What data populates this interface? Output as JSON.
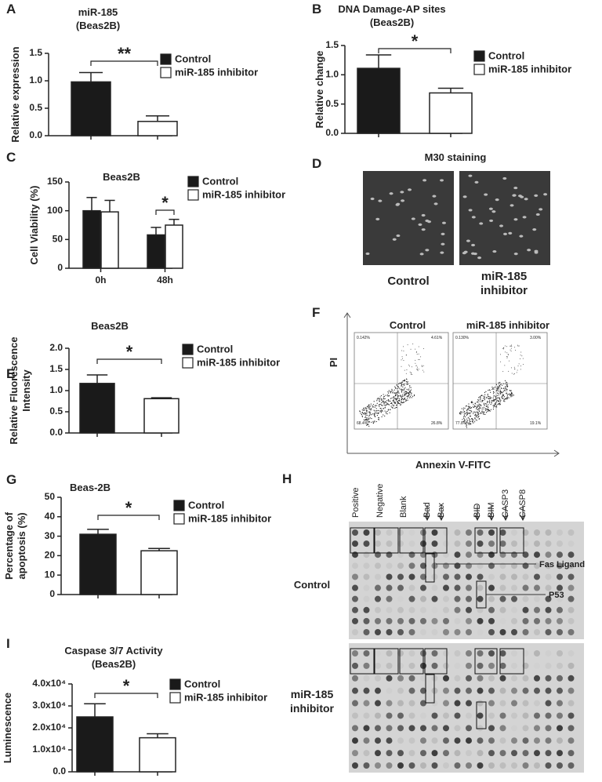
{
  "chart_data": [
    {
      "type": "bar",
      "label": "A",
      "title": "miR-185",
      "subtitle": "(Beas2B)",
      "ylabel": [
        "Relative expression"
      ],
      "categories": [
        null
      ],
      "ylim": [
        0,
        1.5
      ],
      "yticks": [
        {
          "value": 0,
          "label": "0.0"
        },
        {
          "value": 0.5,
          "label": "0.5"
        },
        {
          "value": 1,
          "label": "1.0"
        },
        {
          "value": 1.5,
          "label": "1.5"
        }
      ],
      "series": [
        {
          "name": "Control",
          "color": "#1a1a1a",
          "values": [
            0.98
          ],
          "errors": [
            0.17
          ]
        },
        {
          "name": "miR-185 inhibitor",
          "color": "#ffffff",
          "values": [
            0.26
          ],
          "errors": [
            0.1
          ]
        }
      ],
      "annotation": "**"
    },
    {
      "type": "bar",
      "label": "B",
      "title": "DNA Damage-AP sites",
      "subtitle": "(Beas2B)",
      "ylabel": [
        "Relative change"
      ],
      "categories": [
        null
      ],
      "ylim": [
        0,
        1.5
      ],
      "yticks": [
        {
          "value": 0,
          "label": "0.0"
        },
        {
          "value": 0.5,
          "label": "0.5"
        },
        {
          "value": 1,
          "label": "1.0"
        },
        {
          "value": 1.5,
          "label": "1.5"
        }
      ],
      "series": [
        {
          "name": "Control",
          "color": "#1a1a1a",
          "values": [
            1.11
          ],
          "errors": [
            0.23
          ]
        },
        {
          "name": "miR-185 inhibitor",
          "color": "#ffffff",
          "values": [
            0.69
          ],
          "errors": [
            0.08
          ]
        }
      ],
      "annotation": "*"
    },
    {
      "type": "bar",
      "label": "C",
      "title": "Beas2B",
      "ylabel": [
        "Cell Viability (%)"
      ],
      "categories": [
        "0h",
        "48h"
      ],
      "ylim": [
        0,
        150
      ],
      "yticks": [
        0,
        50,
        100,
        150
      ],
      "series": [
        {
          "name": "Control",
          "color": "#1a1a1a",
          "values": [
            100,
            58
          ],
          "errors": [
            23,
            13
          ]
        },
        {
          "name": "miR-185 inhibitor",
          "color": "#ffffff",
          "values": [
            98,
            75
          ],
          "errors": [
            20,
            10
          ]
        }
      ],
      "annotation": "*"
    },
    {
      "type": "bar",
      "label": "E",
      "title": "Beas2B",
      "ylabel": [
        "Relative Fluorescence",
        "Intensity"
      ],
      "categories": [
        null
      ],
      "ylim": [
        0,
        2
      ],
      "yticks": [
        {
          "value": 0,
          "label": "0.0"
        },
        {
          "value": 0.5,
          "label": "0.5"
        },
        {
          "value": 1,
          "label": "1.0"
        },
        {
          "value": 1.5,
          "label": "1.5"
        },
        {
          "value": 2,
          "label": "2.0"
        }
      ],
      "series": [
        {
          "name": "Control",
          "color": "#1a1a1a",
          "values": [
            1.17
          ],
          "errors": [
            0.2
          ]
        },
        {
          "name": "miR-185 inhibitor",
          "color": "#ffffff",
          "values": [
            0.81
          ],
          "errors": [
            0.02
          ]
        }
      ],
      "annotation": "*"
    },
    {
      "type": "bar",
      "label": "G",
      "title": "Beas-2B",
      "ylabel": [
        "Percentage of",
        "apoptosis (%)"
      ],
      "categories": [
        null
      ],
      "ylim": [
        0,
        50
      ],
      "yticks": [
        0,
        10,
        20,
        30,
        40,
        50
      ],
      "series": [
        {
          "name": "Control",
          "color": "#1a1a1a",
          "values": [
            31
          ],
          "errors": [
            2.5
          ]
        },
        {
          "name": "miR-185 inhibitor",
          "color": "#ffffff",
          "values": [
            22.5
          ],
          "errors": [
            1.2
          ]
        }
      ],
      "annotation": "*"
    },
    {
      "type": "bar",
      "label": "I",
      "title": "Caspase 3/7 Activity",
      "subtitle": "(Beas2B)",
      "ylabel": [
        "Luminescence"
      ],
      "categories": [
        null
      ],
      "ylim": [
        0,
        40000
      ],
      "yticks": [
        {
          "value": 0,
          "label": "0.0"
        },
        {
          "value": 10000,
          "label": "1.0x10⁴"
        },
        {
          "value": 20000,
          "label": "2.0x10⁴"
        },
        {
          "value": 30000,
          "label": "3.0x10⁴"
        },
        {
          "value": 40000,
          "label": "4.0x10⁴"
        }
      ],
      "series": [
        {
          "name": "Control",
          "color": "#1a1a1a",
          "values": [
            25000
          ],
          "errors": [
            6000
          ]
        },
        {
          "name": "miR-185 inhibitor",
          "color": "#ffffff",
          "values": [
            15500
          ],
          "errors": [
            1800
          ]
        }
      ],
      "annotation": "*"
    }
  ],
  "panel_d": {
    "label": "D",
    "title": "M30 staining",
    "captions": [
      "Control",
      "miR-185 inhibitor"
    ]
  },
  "panel_f": {
    "label": "F",
    "titles": [
      "Control",
      "miR-185 inhibitor"
    ],
    "ylabel": "PI",
    "xlabel": "Annexin V-FITC",
    "quadrants": [
      [
        "0.142%",
        "4.61%",
        "68.4%",
        "26.8%"
      ],
      [
        "0.130%",
        "3.00%",
        "77.8%",
        "19.1%"
      ]
    ]
  },
  "panel_h": {
    "label": "H",
    "columns": [
      "Positive",
      "Negative",
      "Blank",
      "Bad",
      "Bax",
      "BID",
      "BIM",
      "CASP3",
      "CASP8"
    ],
    "rows": [
      "Control",
      "miR-185 inhibitor"
    ],
    "annotations": [
      "Fas Ligand",
      "P53"
    ]
  }
}
